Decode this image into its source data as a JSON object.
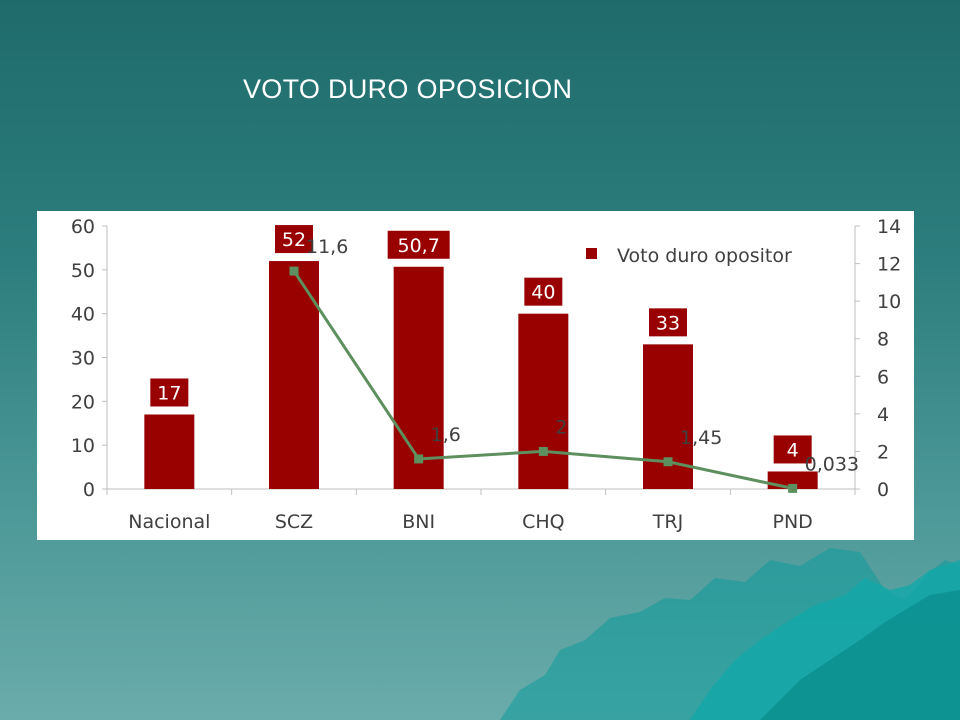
{
  "slide": {
    "title": "VOTO DURO OPOSICION"
  },
  "colors": {
    "bar": "#990000",
    "line": "#5e8f5e",
    "label_bg": "#990000",
    "label_text": "#ffffff",
    "axis": "#bfbfbf",
    "text": "#404040"
  },
  "chart_data": {
    "type": "bar",
    "title": "",
    "categories": [
      "Nacional",
      "SCZ",
      "BNI",
      "CHQ",
      "TRJ",
      "PND"
    ],
    "series": [
      {
        "name": "Voto duro opositor",
        "type": "bar",
        "axis": "left",
        "values": [
          17,
          52,
          50.7,
          40,
          33,
          4
        ],
        "labels": [
          "17",
          "52",
          "50,7",
          "40",
          "33",
          "4"
        ]
      },
      {
        "type": "line",
        "axis": "right",
        "values": [
          null,
          11.6,
          1.6,
          2,
          1.45,
          0.033
        ],
        "labels": [
          "",
          "11,6",
          "1,6",
          "2",
          "1,45",
          "0,033"
        ]
      }
    ],
    "y_left": {
      "min": 0,
      "max": 60,
      "ticks": [
        0,
        10,
        20,
        30,
        40,
        50,
        60
      ]
    },
    "y_right": {
      "min": 0,
      "max": 14,
      "ticks": [
        0,
        2,
        4,
        6,
        8,
        10,
        12,
        14
      ]
    },
    "grid": false,
    "legend": {
      "position": "top-right",
      "entries": [
        "Voto duro opositor"
      ]
    }
  }
}
